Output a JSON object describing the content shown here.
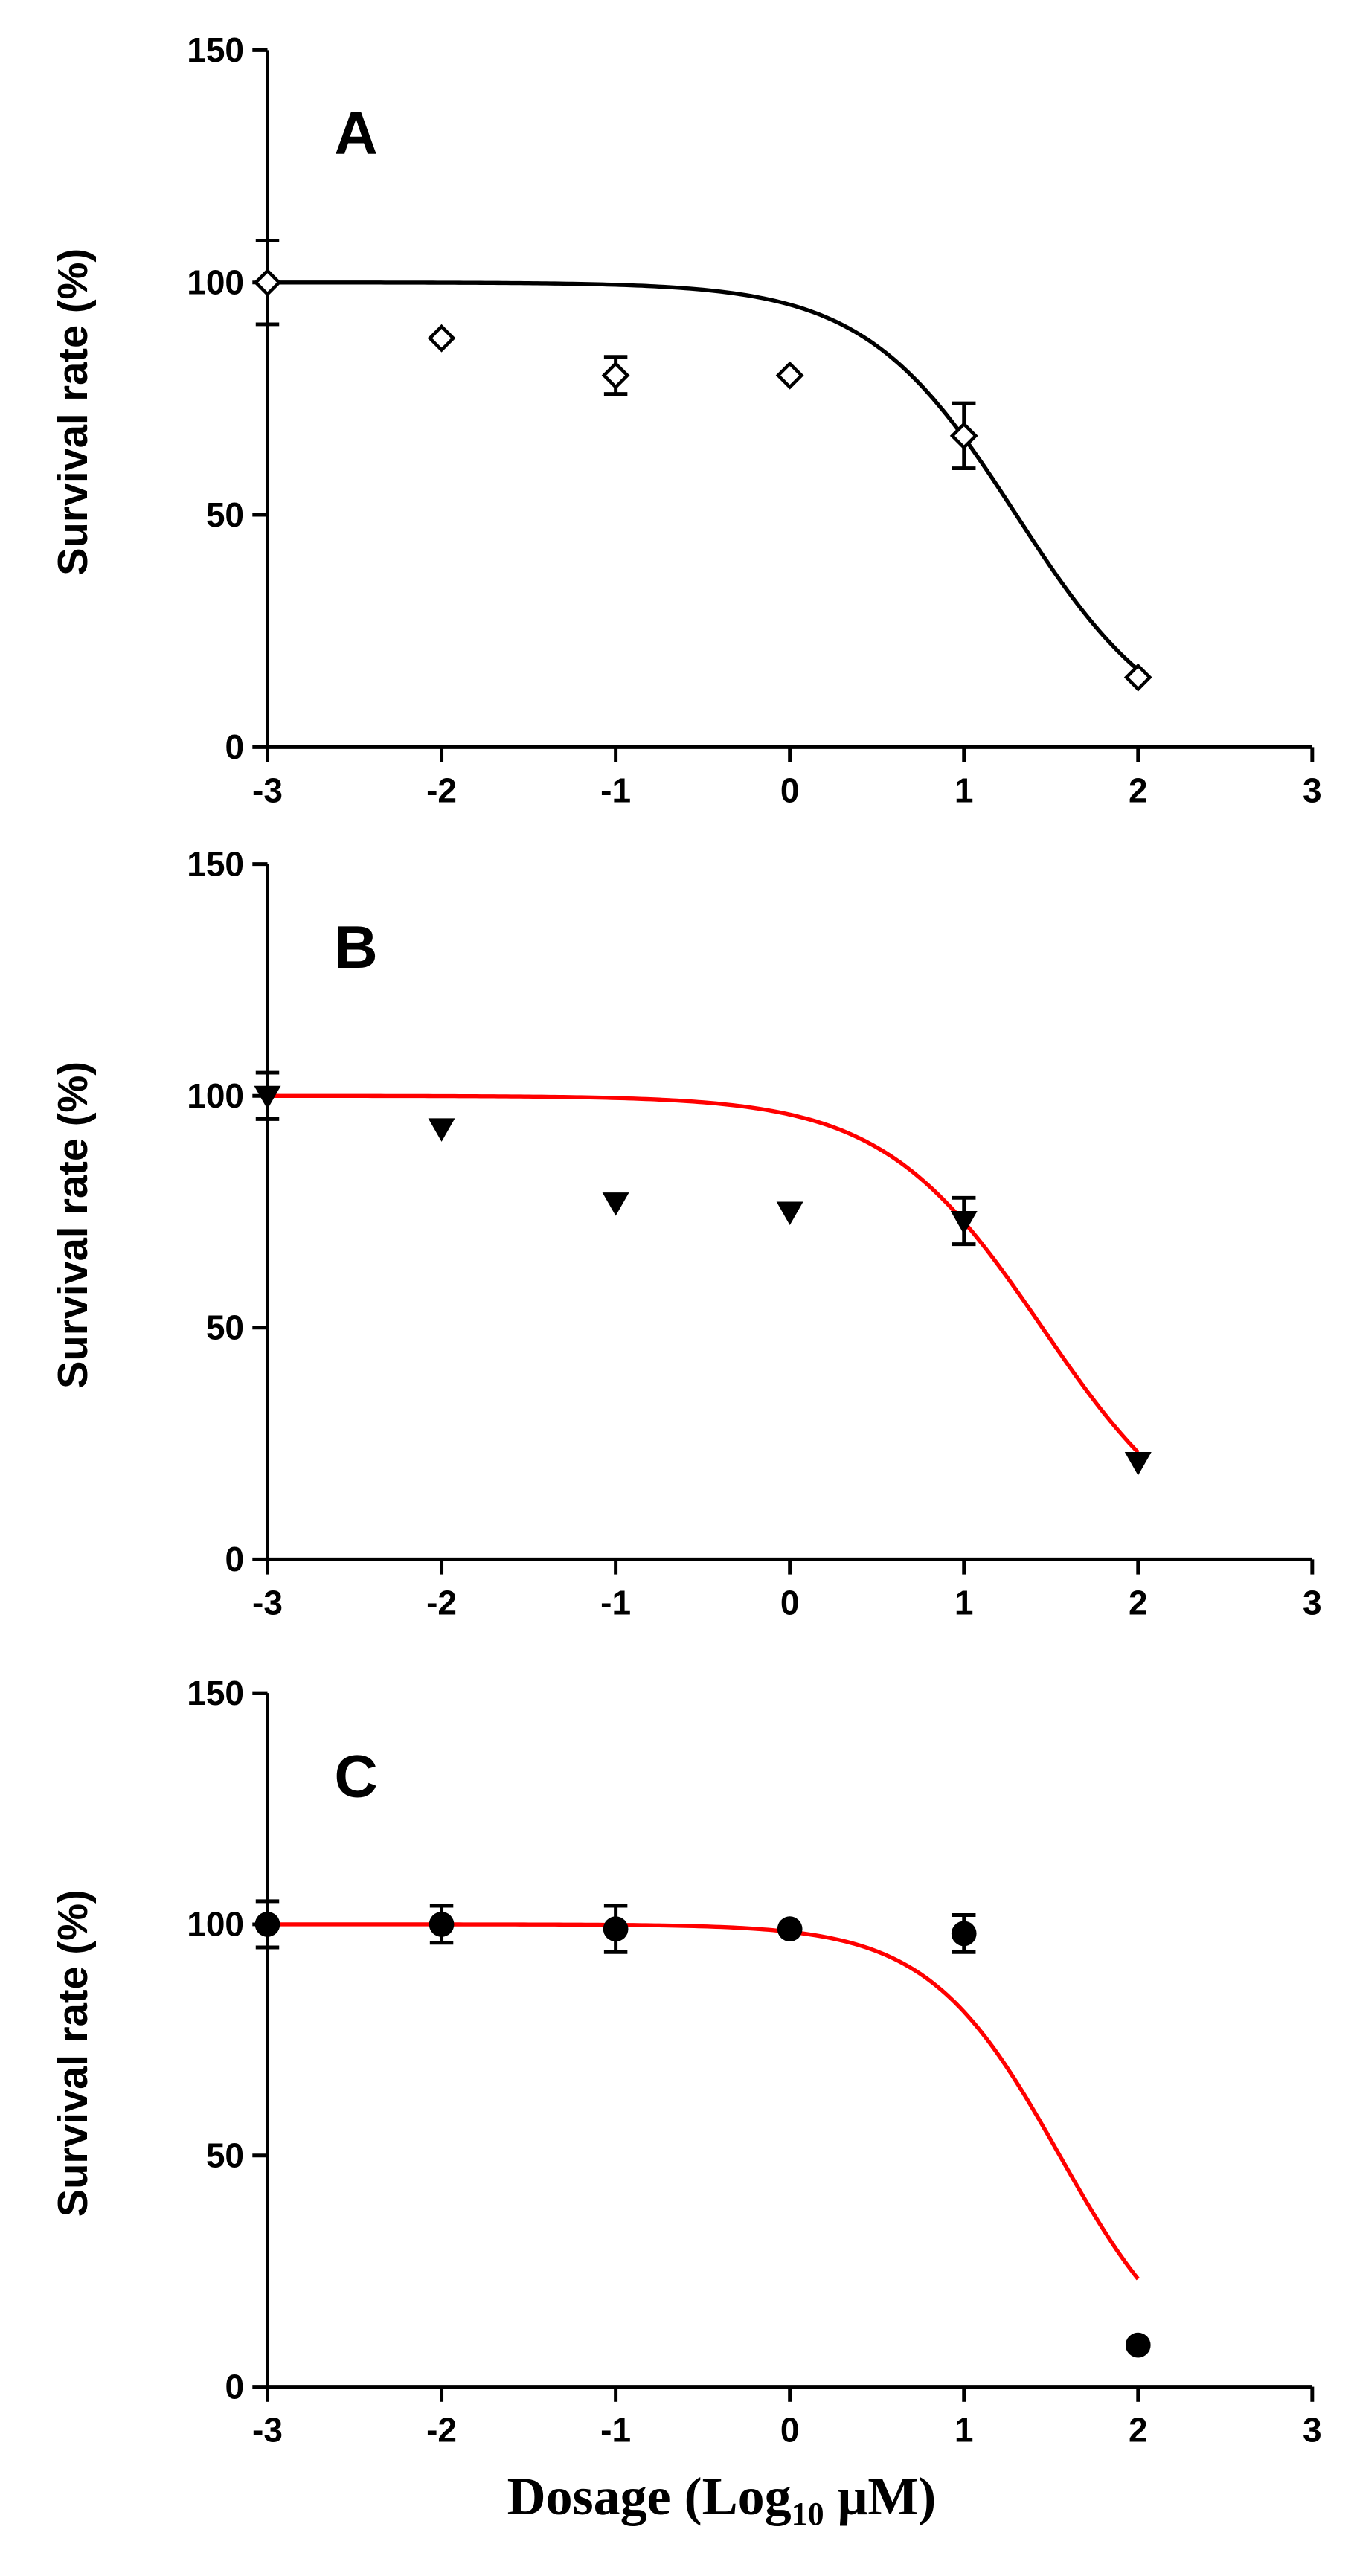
{
  "x_axis_label": {
    "pre": "Dosage (Log",
    "sub": "10",
    "post": " μM)"
  },
  "chart_data": [
    {
      "type": "scatter",
      "panel": "A",
      "ylabel": "Survival rate (%)",
      "xlim": [
        -3,
        3
      ],
      "ylim": [
        0,
        150
      ],
      "x_ticks": [
        -3,
        -2,
        -1,
        0,
        1,
        2,
        3
      ],
      "y_ticks": [
        0,
        50,
        100,
        150
      ],
      "marker": "open-diamond",
      "fit_color": "#000000",
      "points": [
        {
          "x": -3,
          "y": 100,
          "err": 9
        },
        {
          "x": -2,
          "y": 88,
          "err": 0
        },
        {
          "x": -1,
          "y": 80,
          "err": 4
        },
        {
          "x": 0,
          "y": 80,
          "err": 0
        },
        {
          "x": 1,
          "y": 67,
          "err": 7
        },
        {
          "x": 2,
          "y": 15,
          "err": 0
        }
      ],
      "fit": {
        "top": 100,
        "bottom": 0,
        "logIC50": 1.3,
        "hill": 1.0,
        "x_range": [
          -3,
          2
        ]
      }
    },
    {
      "type": "scatter",
      "panel": "B",
      "ylabel": "Survival rate (%)",
      "xlim": [
        -3,
        3
      ],
      "ylim": [
        0,
        150
      ],
      "x_ticks": [
        -3,
        -2,
        -1,
        0,
        1,
        2,
        3
      ],
      "y_ticks": [
        0,
        50,
        100,
        150
      ],
      "marker": "filled-triangle-down",
      "fit_color": "#ff0000",
      "points": [
        {
          "x": -3,
          "y": 100,
          "err": 5
        },
        {
          "x": -2,
          "y": 93,
          "err": 0
        },
        {
          "x": -1,
          "y": 77,
          "err": 0
        },
        {
          "x": 0,
          "y": 75,
          "err": 0
        },
        {
          "x": 1,
          "y": 73,
          "err": 5
        },
        {
          "x": 2,
          "y": 21,
          "err": 0
        }
      ],
      "fit": {
        "top": 100,
        "bottom": 0,
        "logIC50": 1.45,
        "hill": 0.95,
        "x_range": [
          -3,
          2
        ]
      }
    },
    {
      "type": "scatter",
      "panel": "C",
      "ylabel": "Survival rate (%)",
      "xlim": [
        -3,
        3
      ],
      "ylim": [
        0,
        150
      ],
      "x_ticks": [
        -3,
        -2,
        -1,
        0,
        1,
        2,
        3
      ],
      "y_ticks": [
        0,
        50,
        100,
        150
      ],
      "marker": "filled-circle",
      "fit_color": "#ff0000",
      "points": [
        {
          "x": -3,
          "y": 100,
          "err": 5
        },
        {
          "x": -2,
          "y": 100,
          "err": 4
        },
        {
          "x": -1,
          "y": 99,
          "err": 5
        },
        {
          "x": 0,
          "y": 99,
          "err": 0
        },
        {
          "x": 1,
          "y": 98,
          "err": 4
        },
        {
          "x": 2,
          "y": 9,
          "err": 0
        }
      ],
      "fit": {
        "top": 100,
        "bottom": 0,
        "logIC50": 1.55,
        "hill": 1.15,
        "x_range": [
          -3,
          2
        ]
      }
    }
  ]
}
